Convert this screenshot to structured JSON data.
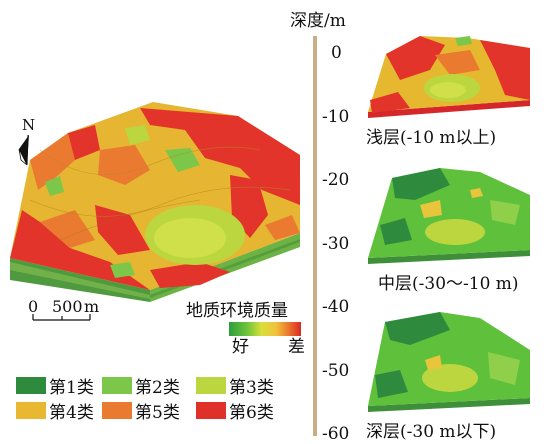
{
  "north_label": "N",
  "scale": {
    "zero": "0",
    "value": "500",
    "unit": "m"
  },
  "quality_bar": {
    "title": "地质环境质量",
    "good": "好",
    "bad": "差",
    "colors": [
      "#2e9d3c",
      "#59c13c",
      "#b7d53b",
      "#e8e13a",
      "#f0b53a",
      "#ec7a2f",
      "#e33a2a"
    ]
  },
  "classes": [
    {
      "label": "第1类",
      "color": "#2e8b3e"
    },
    {
      "label": "第2类",
      "color": "#7cc64a"
    },
    {
      "label": "第3类",
      "color": "#bcd640"
    },
    {
      "label": "第4类",
      "color": "#e8b830"
    },
    {
      "label": "第5类",
      "color": "#ea7a30"
    },
    {
      "label": "第6类",
      "color": "#e0302a"
    }
  ],
  "depth_axis": {
    "title": "深度/m",
    "ticks": [
      "0",
      "-10",
      "-20",
      "-30",
      "-40",
      "-50",
      "-60"
    ]
  },
  "layers": [
    {
      "label": "浅层(-10 m以上)"
    },
    {
      "label": "中层(-30～-10 m)"
    },
    {
      "label": "深层(-30 m以下)"
    }
  ]
}
